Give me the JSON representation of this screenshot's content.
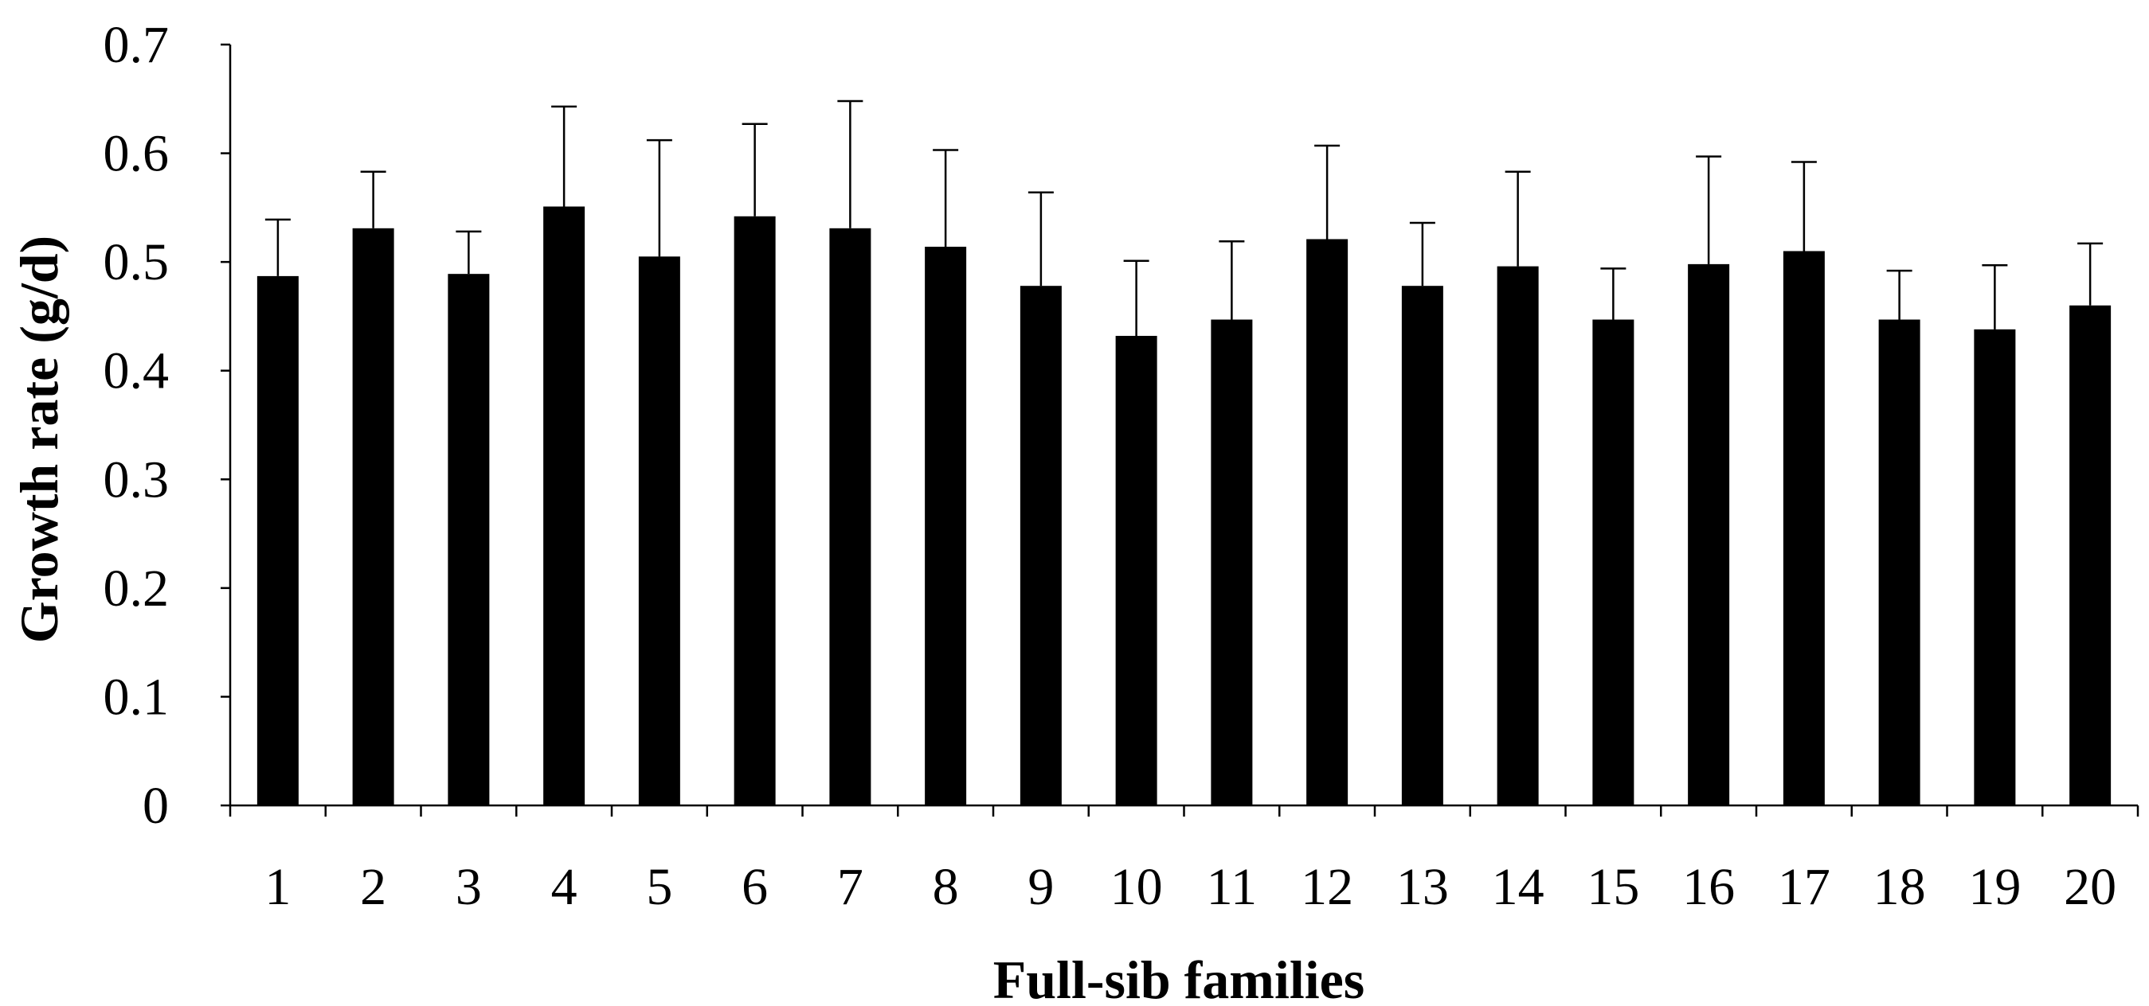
{
  "chart_data": {
    "type": "bar",
    "title": "",
    "xlabel": "Full-sib families",
    "ylabel": "Growth rate (g/d)",
    "ylim": [
      0,
      0.7
    ],
    "yticks": [
      "0",
      "0.1",
      "0.2",
      "0.3",
      "0.4",
      "0.5",
      "0.6",
      "0.7"
    ],
    "grid": false,
    "legend": "none",
    "bar_color": "#000000",
    "categories": [
      "1",
      "2",
      "3",
      "4",
      "5",
      "6",
      "7",
      "8",
      "9",
      "10",
      "11",
      "12",
      "13",
      "14",
      "15",
      "16",
      "17",
      "18",
      "19",
      "20"
    ],
    "values": [
      0.487,
      0.531,
      0.489,
      0.551,
      0.505,
      0.542,
      0.531,
      0.514,
      0.478,
      0.432,
      0.447,
      0.521,
      0.478,
      0.496,
      0.447,
      0.498,
      0.51,
      0.447,
      0.438,
      0.46
    ],
    "error_upper": [
      0.539,
      0.583,
      0.528,
      0.643,
      0.612,
      0.627,
      0.648,
      0.603,
      0.564,
      0.501,
      0.519,
      0.607,
      0.536,
      0.583,
      0.494,
      0.597,
      0.592,
      0.492,
      0.497,
      0.517
    ]
  }
}
